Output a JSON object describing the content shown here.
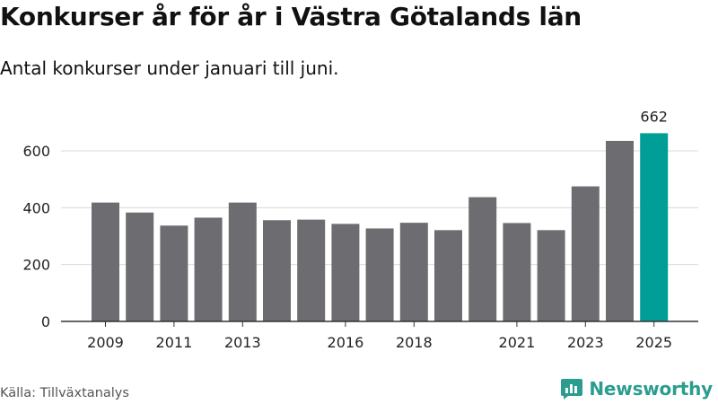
{
  "title": "Konkurser år för år i Västra Götalands län",
  "subtitle": "Antal konkurser under januari till juni.",
  "source": "Källa: Tillväxtanalys",
  "brand": "Newsworthy",
  "colors": {
    "bar": "#6d6c71",
    "highlight": "#009e96",
    "grid": "#d9d9d9",
    "axis": "#333333",
    "brand": "#2a9d8f"
  },
  "icons": {
    "brand_logo": "chat-bubble-bar-chart-icon"
  },
  "chart_data": {
    "type": "bar",
    "title": "",
    "xlabel": "",
    "ylabel": "",
    "categories": [
      "2009",
      "2010",
      "2011",
      "2012",
      "2013",
      "2014",
      "2015",
      "2016",
      "2017",
      "2018",
      "2019",
      "2020",
      "2021",
      "2022",
      "2023",
      "2024",
      "2025"
    ],
    "x_tick_labels": [
      "2009",
      "",
      "2011",
      "",
      "2013",
      "",
      "",
      "2016",
      "",
      "2018",
      "",
      "",
      "2021",
      "",
      "2023",
      "",
      "2025"
    ],
    "values": [
      418,
      383,
      337,
      365,
      418,
      356,
      358,
      343,
      327,
      347,
      321,
      437,
      346,
      321,
      475,
      635,
      662
    ],
    "highlight_index": 16,
    "data_labels": [
      {
        "index": 16,
        "text": "662"
      }
    ],
    "ylim": [
      0,
      700
    ],
    "yticks": [
      0,
      200,
      400,
      600
    ],
    "grid": true,
    "legend": "none"
  }
}
